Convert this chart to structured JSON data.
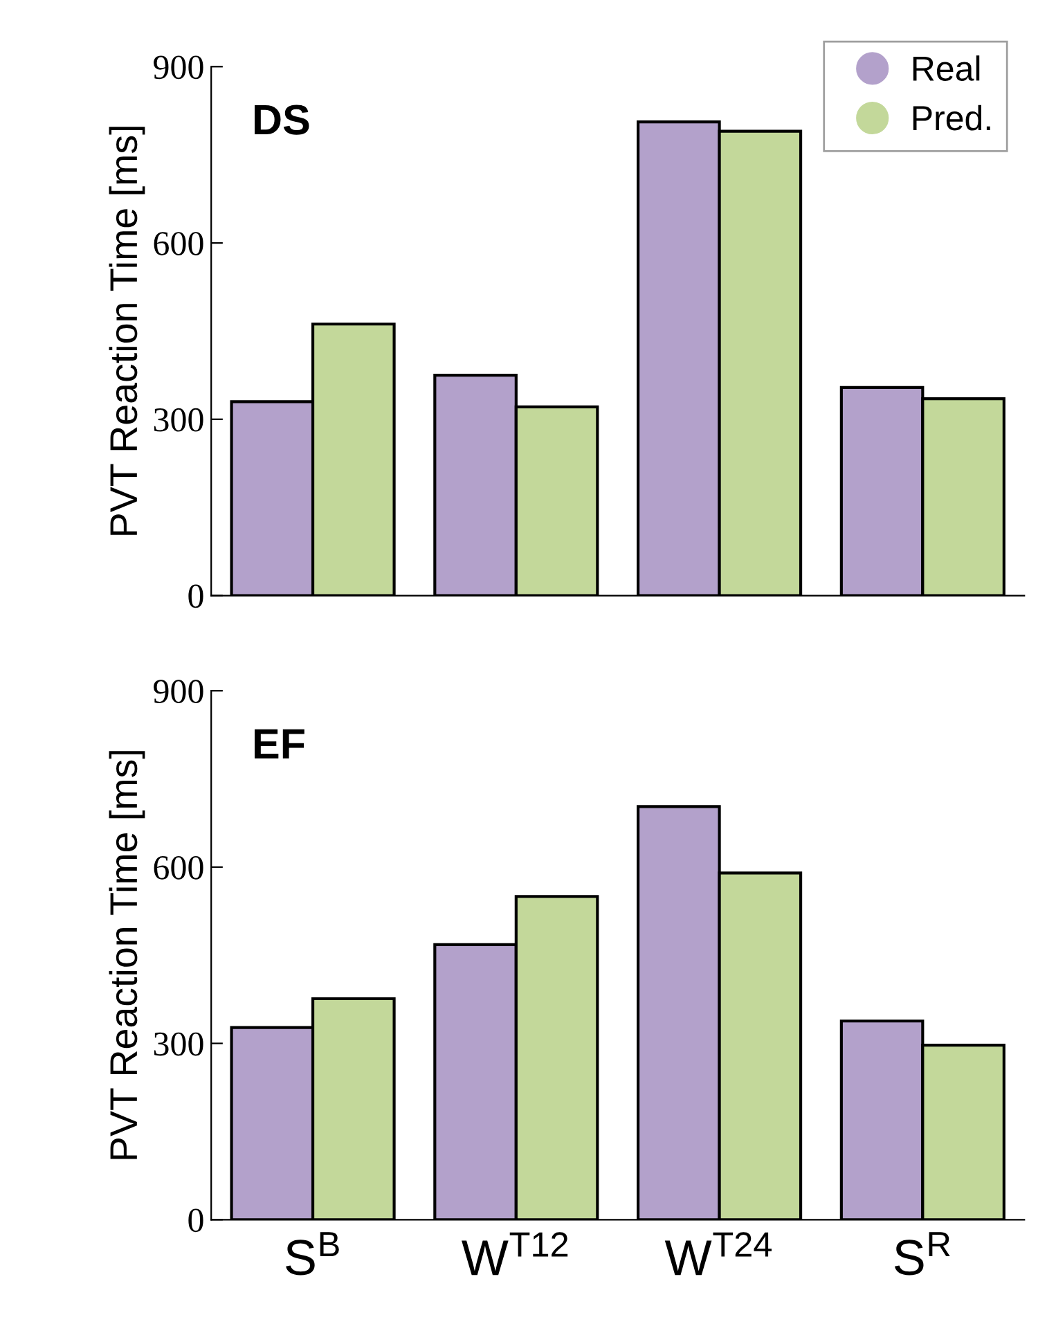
{
  "chart_data": [
    {
      "type": "bar",
      "title": "DS",
      "ylabel": "PVT Reaction Time [ms]",
      "categories": [
        null,
        null,
        null,
        null
      ],
      "series": [
        {
          "name": "Real",
          "color": "#b3a1cb",
          "values": [
            330,
            375,
            806,
            354
          ]
        },
        {
          "name": "Pred.",
          "color": "#c3d89a",
          "values": [
            462,
            321,
            790,
            335
          ]
        }
      ],
      "ylim": [
        0,
        900
      ],
      "yticks": [
        0,
        300,
        600,
        900
      ],
      "tick_labels": "y",
      "legend": "top right",
      "grid": false
    },
    {
      "type": "bar",
      "title": "EF",
      "ylabel": "PVT Reaction Time [ms]",
      "categories": [
        "S$^{B}$",
        "W$^{T12}$",
        "W$^{T24}$",
        "S$^{R}$"
      ],
      "series": [
        {
          "color": "#b3a1cb",
          "values": [
            327,
            468,
            703,
            338
          ]
        },
        {
          "color": "#c3d89a",
          "values": [
            376,
            550,
            590,
            297
          ]
        }
      ],
      "ylim": [
        0,
        900
      ],
      "yticks": [
        0,
        300,
        600,
        900
      ],
      "grid": false
    }
  ]
}
